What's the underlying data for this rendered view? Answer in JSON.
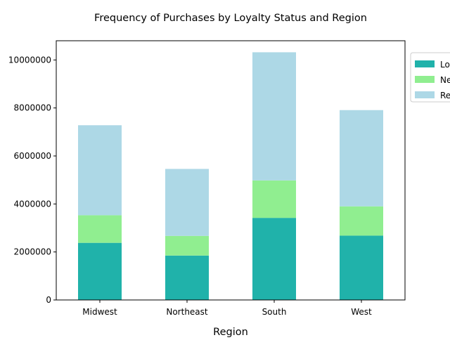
{
  "chart_data": {
    "type": "bar",
    "stacked": true,
    "title": "Frequency of Purchases by Loyalty Status and Region",
    "xlabel": "Region",
    "ylabel": "",
    "categories": [
      "Midwest",
      "Northeast",
      "South",
      "West"
    ],
    "series": [
      {
        "name": "Lo",
        "color": "#20b2aa",
        "values": [
          2380000,
          1850000,
          3420000,
          2680000
        ]
      },
      {
        "name": "Ne",
        "color": "#90ee90",
        "values": [
          1150000,
          820000,
          1560000,
          1220000
        ]
      },
      {
        "name": "Re",
        "color": "#add8e6",
        "values": [
          3750000,
          2790000,
          5340000,
          4010000
        ]
      }
    ],
    "ylim": [
      0,
      10800000
    ],
    "yticks": [
      0,
      2000000,
      4000000,
      6000000,
      8000000,
      10000000
    ],
    "ytick_labels": [
      "0",
      "2000000",
      "4000000",
      "6000000",
      "8000000",
      "10000000"
    ],
    "grid": false,
    "legend_position": "upper-right-outside"
  }
}
